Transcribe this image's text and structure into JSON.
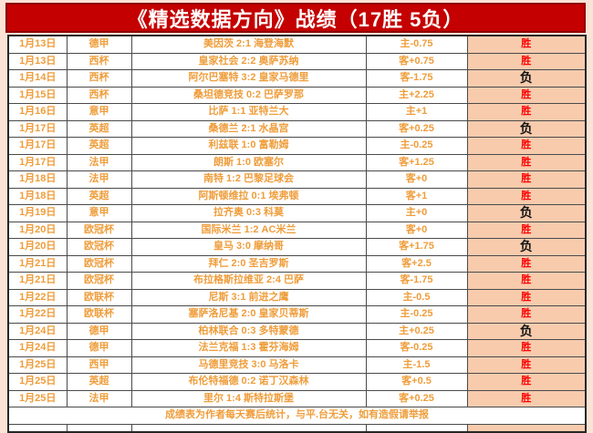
{
  "title": "《精选数据方向》战绩（17胜 5负）",
  "footer": "成绩表为作者每天赛后统计，与平.台无关，如有造假请举报",
  "labels": {
    "win": "胜",
    "loss": "负"
  },
  "colors": {
    "title_bg": "#c40000",
    "title_text": "#ffffff",
    "data_text": "#ef9d3b",
    "win_text": "#fe0000",
    "loss_text": "#141414",
    "result_bg": "#f8cbad",
    "page_bg": "#fbe3d6",
    "grid_border": "#4a4a4a"
  },
  "record": {
    "wins": 17,
    "losses": 5
  },
  "table": {
    "rows": [
      {
        "date": "1月13日",
        "league": "德甲",
        "match": "美因茨 2:1 海登海默",
        "handicap": "主-0.75",
        "result": "胜"
      },
      {
        "date": "1月13日",
        "league": "西杯",
        "match": "皇家社会 2:2 奥萨苏纳",
        "handicap": "客+0.75",
        "result": "胜"
      },
      {
        "date": "1月14日",
        "league": "西杯",
        "match": "阿尔巴塞特 3:2 皇家马德里",
        "handicap": "客-1.75",
        "result": "负"
      },
      {
        "date": "1月15日",
        "league": "西杯",
        "match": "桑坦德竞技 0:2 巴萨罗那",
        "handicap": "主+2.25",
        "result": "胜"
      },
      {
        "date": "1月16日",
        "league": "意甲",
        "match": "比萨 1:1 亚特兰大",
        "handicap": "主+1",
        "result": "胜"
      },
      {
        "date": "1月17日",
        "league": "英超",
        "match": "桑德兰 2:1 水晶宫",
        "handicap": "客+0.25",
        "result": "负"
      },
      {
        "date": "1月17日",
        "league": "英超",
        "match": "利兹联 1:0 富勒姆",
        "handicap": "主-0.25",
        "result": "胜"
      },
      {
        "date": "1月17日",
        "league": "法甲",
        "match": "朗斯 1:0 欧塞尔",
        "handicap": "客+1.25",
        "result": "胜"
      },
      {
        "date": "1月18日",
        "league": "法甲",
        "match": "南特 1:2 巴黎足球会",
        "handicap": "客+0",
        "result": "胜"
      },
      {
        "date": "1月18日",
        "league": "英超",
        "match": "阿斯顿维拉 0:1 埃弗顿",
        "handicap": "客+1",
        "result": "胜"
      },
      {
        "date": "1月19日",
        "league": "意甲",
        "match": "拉齐奥 0:3 科莫",
        "handicap": "主+0",
        "result": "负"
      },
      {
        "date": "1月20日",
        "league": "欧冠杯",
        "match": "国际米兰 1:2 AC米兰",
        "handicap": "客+0",
        "result": "胜"
      },
      {
        "date": "1月20日",
        "league": "欧冠杯",
        "match": "皇马 3:0 摩纳哥",
        "handicap": "客+1.75",
        "result": "负"
      },
      {
        "date": "1月21日",
        "league": "欧冠杯",
        "match": "拜仁 2:0 圣吉罗斯",
        "handicap": "客+2.5",
        "result": "胜"
      },
      {
        "date": "1月21日",
        "league": "欧冠杯",
        "match": "布拉格斯拉维亚 2:4 巴萨",
        "handicap": "客-1.75",
        "result": "胜"
      },
      {
        "date": "1月22日",
        "league": "欧联杯",
        "match": "尼斯 3:1 前进之鹰",
        "handicap": "主-0.5",
        "result": "胜"
      },
      {
        "date": "1月22日",
        "league": "欧联杯",
        "match": "塞萨洛尼基 2:0 皇家贝蒂斯",
        "handicap": "主-0.25",
        "result": "胜"
      },
      {
        "date": "1月24日",
        "league": "德甲",
        "match": "柏林联合 0:3 多特蒙德",
        "handicap": "主+0.25",
        "result": "负"
      },
      {
        "date": "1月24日",
        "league": "德甲",
        "match": "法兰克福 1:3 霍芬海姆",
        "handicap": "客-0.25",
        "result": "胜"
      },
      {
        "date": "1月25日",
        "league": "西甲",
        "match": "马德里竞技 3:0 马洛卡",
        "handicap": "主-1.5",
        "result": "胜"
      },
      {
        "date": "1月25日",
        "league": "英超",
        "match": "布伦特福德 0:2 诺丁汉森林",
        "handicap": "客+0.5",
        "result": "胜"
      },
      {
        "date": "1月25日",
        "league": "法甲",
        "match": "里尔 1:4 斯特拉斯堡",
        "handicap": "客+0.25",
        "result": "胜"
      }
    ]
  }
}
